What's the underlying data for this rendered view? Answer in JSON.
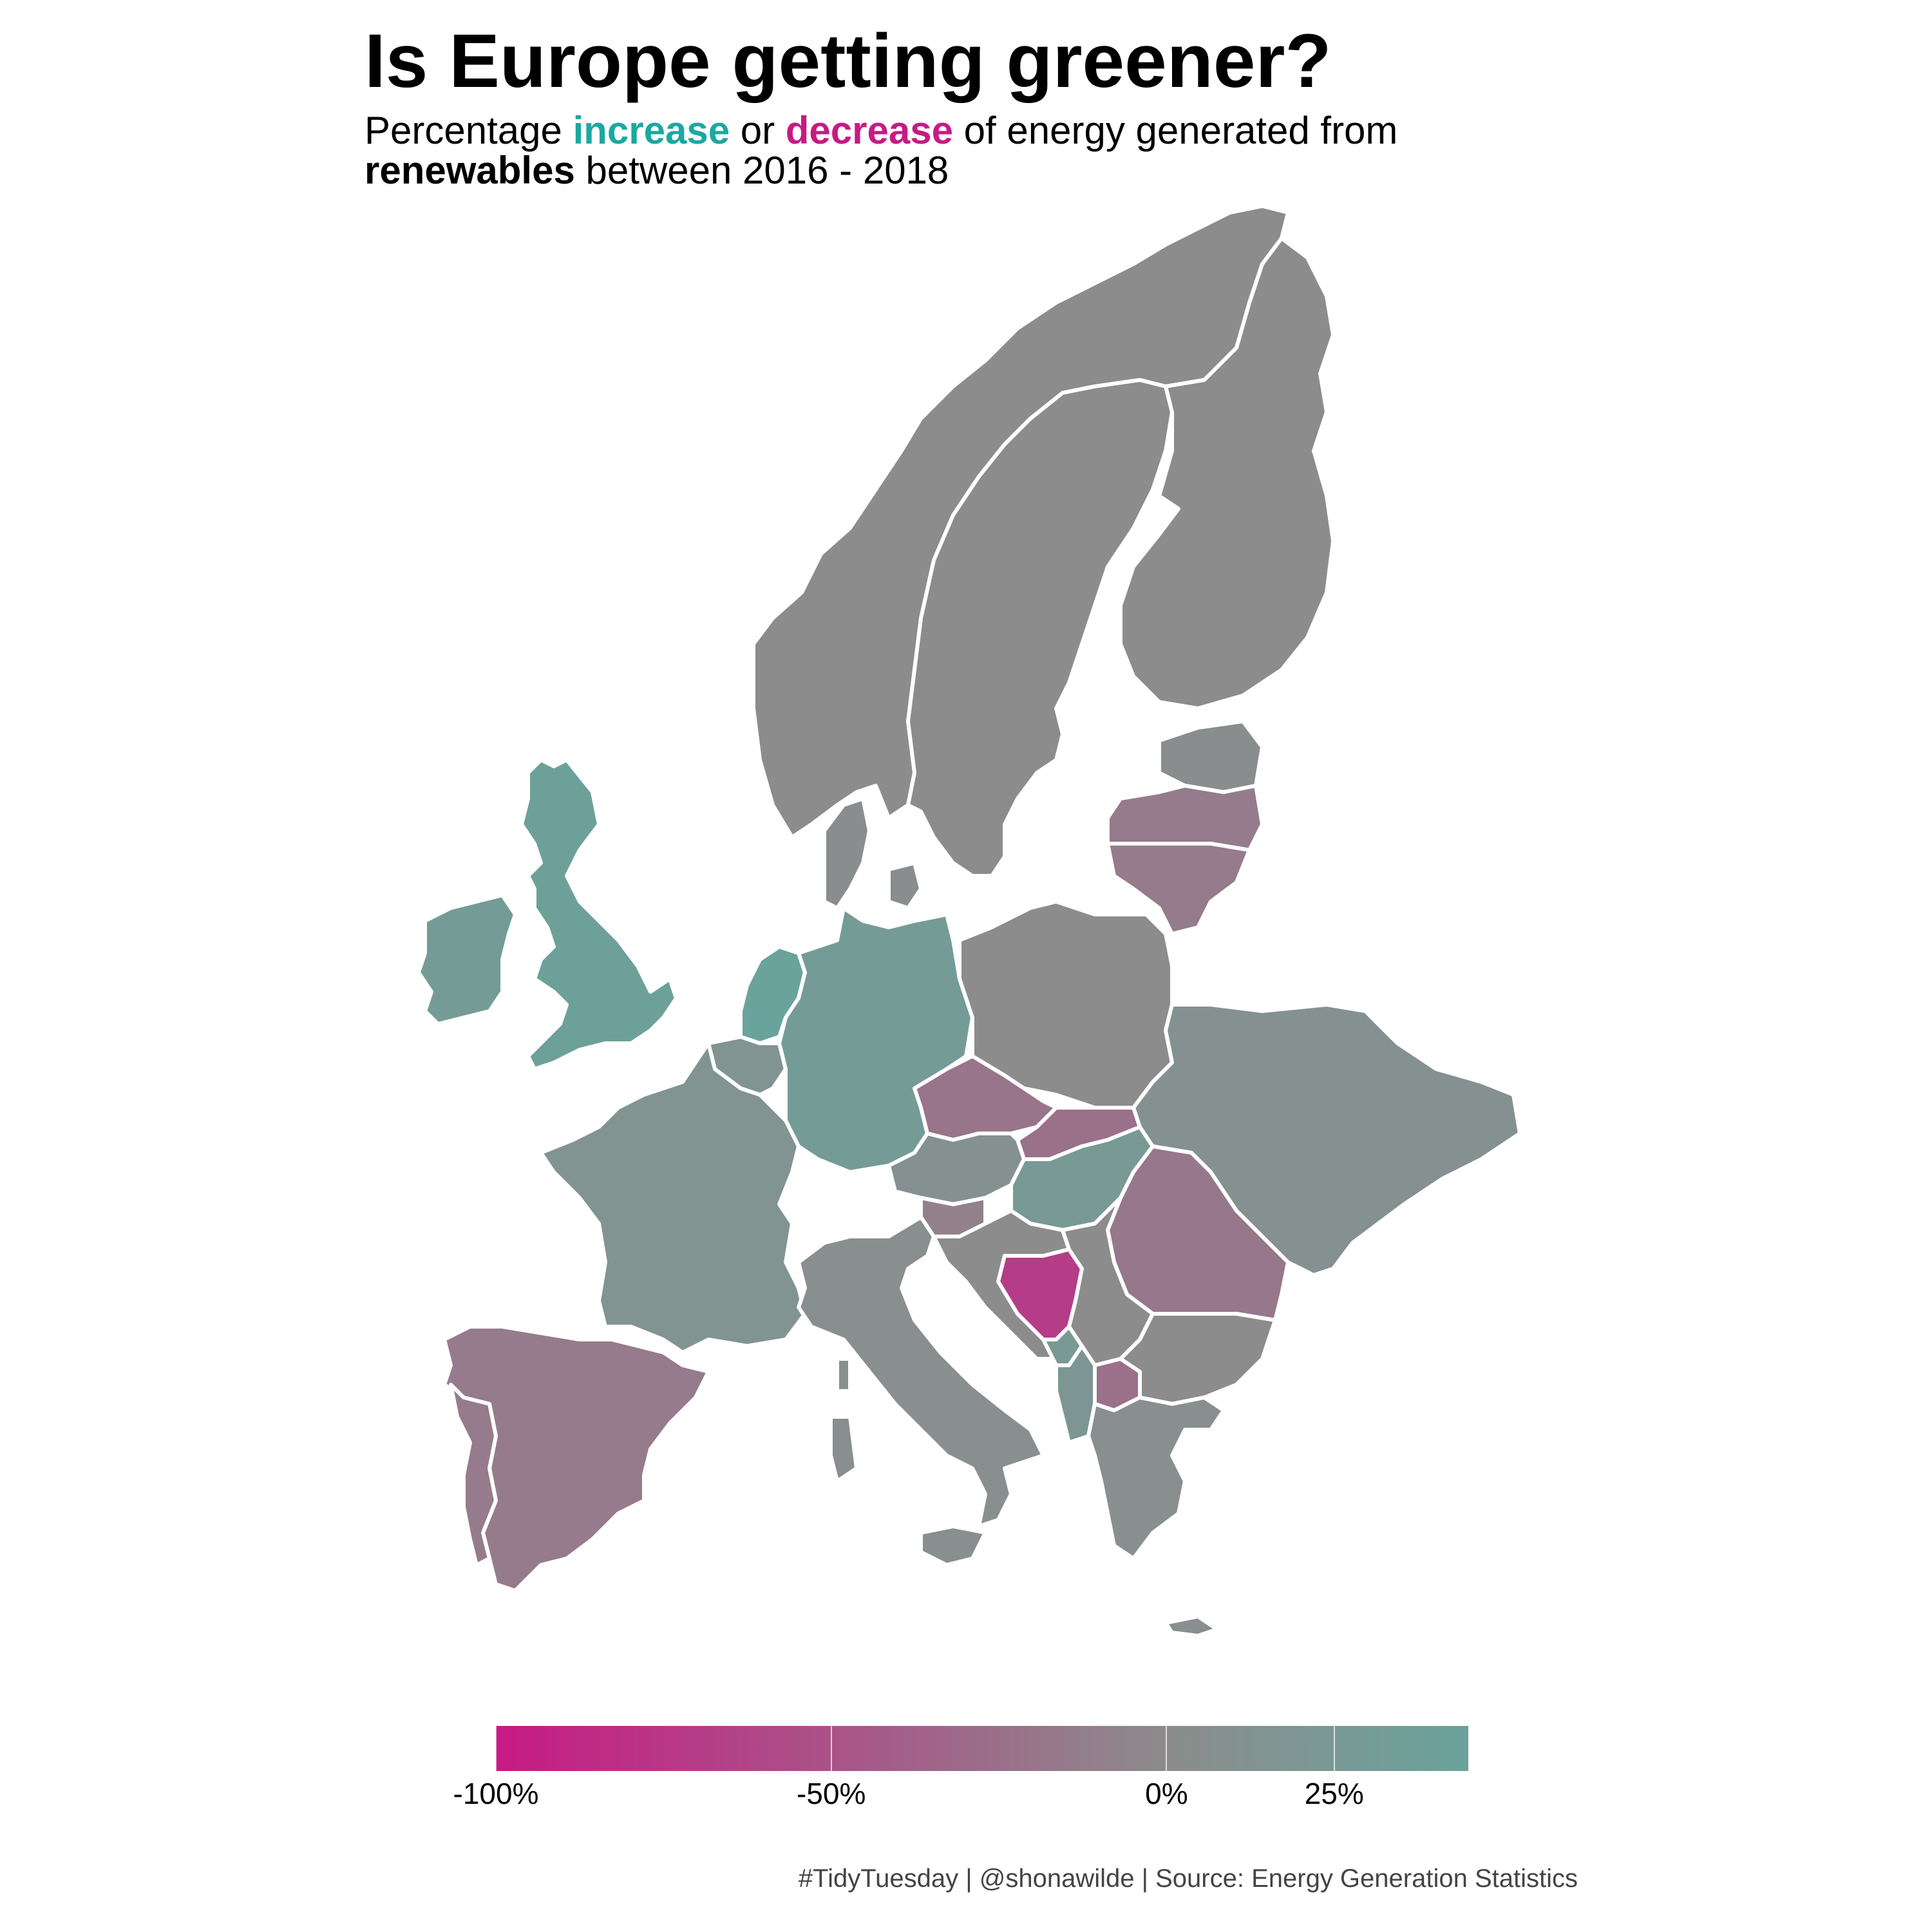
{
  "title_text": "Is Europe getting greener?",
  "subtitle": {
    "part1": "Percentage ",
    "increase": "increase",
    "part2": " or ",
    "decrease": "decrease",
    "part3": " of energy generated from",
    "renewables": "renewables",
    "part4": " between 2016 - 2018"
  },
  "legend": {
    "min": -100,
    "max": 45,
    "ticks": [
      {
        "value": -100,
        "label": "-100%"
      },
      {
        "value": -50,
        "label": "-50%"
      },
      {
        "value": 0,
        "label": "0%"
      },
      {
        "value": 25,
        "label": "25%"
      }
    ],
    "color_low": "#c71a84",
    "color_mid": "#8c8c8c",
    "color_high": "#6aa39c"
  },
  "caption": "#TidyTuesday | @shonawilde | Source: Energy Generation Statistics",
  "regions": [
    {
      "name": "Norway",
      "change": 0
    },
    {
      "name": "Sweden",
      "change": 0
    },
    {
      "name": "Finland",
      "change": 0
    },
    {
      "name": "Estonia",
      "change": 2
    },
    {
      "name": "Latvia",
      "change": -15
    },
    {
      "name": "Lithuania",
      "change": -15
    },
    {
      "name": "United Kingdom",
      "change": 40
    },
    {
      "name": "Ireland",
      "change": 30
    },
    {
      "name": "Netherlands",
      "change": 45
    },
    {
      "name": "Belgium",
      "change": 15
    },
    {
      "name": "Denmark",
      "change": 2
    },
    {
      "name": "Germany",
      "change": 30
    },
    {
      "name": "Poland",
      "change": 0
    },
    {
      "name": "France",
      "change": 15
    },
    {
      "name": "Czechia",
      "change": -20
    },
    {
      "name": "Slovakia",
      "change": -25
    },
    {
      "name": "Austria",
      "change": 10
    },
    {
      "name": "Hungary",
      "change": 25
    },
    {
      "name": "Ukraine",
      "change": 10
    },
    {
      "name": "Romania",
      "change": -18
    },
    {
      "name": "Slovenia",
      "change": -10
    },
    {
      "name": "Croatia",
      "change": 0
    },
    {
      "name": "Bosnia and Herzegovina",
      "change": -70
    },
    {
      "name": "Serbia",
      "change": 0
    },
    {
      "name": "Montenegro",
      "change": 25
    },
    {
      "name": "North Macedonia",
      "change": -25
    },
    {
      "name": "Albania",
      "change": 20
    },
    {
      "name": "Bulgaria",
      "change": 0
    },
    {
      "name": "Greece",
      "change": 5
    },
    {
      "name": "Italy",
      "change": 5
    },
    {
      "name": "Spain",
      "change": -15
    },
    {
      "name": "Portugal",
      "change": -15
    }
  ]
}
